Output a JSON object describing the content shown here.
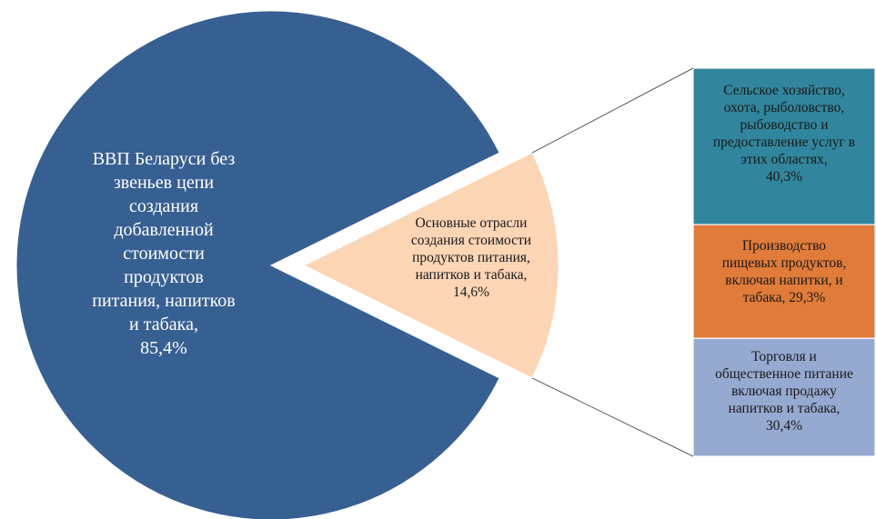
{
  "chart_data": {
    "type": "pie",
    "variant": "bar-of-pie",
    "slices": [
      {
        "lines": [
          "ВВП  Беларуси без",
          "звеньев цепи",
          "создания",
          "добавленной",
          "стоимости",
          "продуктов",
          "питания, напитков",
          "и табака,",
          "85,4%"
        ],
        "value": 85.4,
        "color": "#376092"
      },
      {
        "lines": [
          "Основные отрасли",
          "создания стоимости",
          "продуктов питания,",
          "напитков и табака,",
          "14,6%"
        ],
        "value": 14.6,
        "color": "#fcd5b5",
        "exploded": true
      }
    ],
    "breakdown": [
      {
        "lines": [
          "Сельское хозяйство,",
          "охота, рыболовство,",
          "рыбоводство и",
          "предоставление услуг в",
          "этих областях,",
          "40,3%"
        ],
        "value": 40.3,
        "color": "#31859c"
      },
      {
        "lines": [
          "Производство",
          "пищевых продуктов,",
          "включая напитки,  и",
          "табака,  29,3%"
        ],
        "value": 29.3,
        "color": "#e07b39"
      },
      {
        "lines": [
          "Торговля и",
          "общественное питание",
          "включая продажу",
          "напитков и табака,",
          "30,4%"
        ],
        "value": 30.4,
        "color": "#95a9d1"
      }
    ]
  }
}
